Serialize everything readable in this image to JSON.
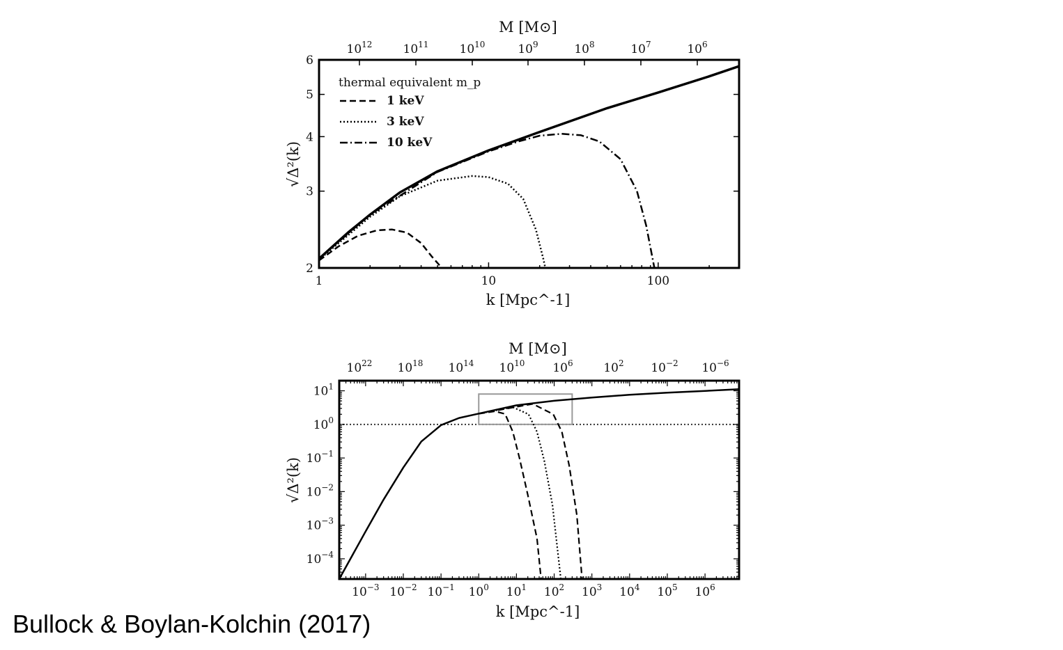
{
  "caption": "Bullock & Boylan-Kolchin (2017)",
  "chart_data": [
    {
      "type": "line",
      "panel": "top",
      "xscale": "log",
      "yscale": "log",
      "xlim": [
        1,
        300
      ],
      "ylim": [
        2,
        6
      ],
      "xlabel": "k [Mpc^-1]",
      "ylabel": "√Δ²(k)",
      "top_axis_label": "M [M⊙]",
      "x_ticks": [
        "1",
        "10",
        "100"
      ],
      "y_ticks": [
        "2",
        "3",
        "4",
        "5",
        "6"
      ],
      "top_ticks": [
        {
          "base": "10",
          "exp": "12"
        },
        {
          "base": "10",
          "exp": "11"
        },
        {
          "base": "10",
          "exp": "10"
        },
        {
          "base": "10",
          "exp": "9"
        },
        {
          "base": "10",
          "exp": "8"
        },
        {
          "base": "10",
          "exp": "7"
        },
        {
          "base": "10",
          "exp": "6"
        }
      ],
      "legend": {
        "title": "thermal equivalent m_p",
        "placement": "top-left",
        "entries": [
          "1 keV",
          "3 keV",
          "10 keV"
        ]
      },
      "series": [
        {
          "style": "solid",
          "points": [
            [
              1,
              2.1
            ],
            [
              1.5,
              2.42
            ],
            [
              2,
              2.65
            ],
            [
              3,
              2.98
            ],
            [
              5,
              3.33
            ],
            [
              10,
              3.72
            ],
            [
              20,
              4.1
            ],
            [
              50,
              4.65
            ],
            [
              100,
              5.05
            ],
            [
              200,
              5.5
            ],
            [
              300,
              5.8
            ]
          ]
        },
        {
          "name": "1 keV",
          "style": "dashed",
          "points": [
            [
              1,
              2.08
            ],
            [
              1.3,
              2.24
            ],
            [
              1.7,
              2.37
            ],
            [
              2.2,
              2.44
            ],
            [
              2.7,
              2.45
            ],
            [
              3.3,
              2.41
            ],
            [
              4.0,
              2.28
            ],
            [
              4.6,
              2.13
            ],
            [
              5.3,
              2.0
            ]
          ]
        },
        {
          "name": "3 keV",
          "style": "dotted",
          "points": [
            [
              1,
              2.09
            ],
            [
              2,
              2.62
            ],
            [
              3,
              2.92
            ],
            [
              5,
              3.17
            ],
            [
              8,
              3.25
            ],
            [
              10,
              3.23
            ],
            [
              13,
              3.12
            ],
            [
              16,
              2.88
            ],
            [
              19,
              2.45
            ],
            [
              21,
              2.1
            ],
            [
              21.6,
              2.0
            ]
          ]
        },
        {
          "name": "10 keV",
          "style": "dashdot",
          "points": [
            [
              1,
              2.1
            ],
            [
              2,
              2.65
            ],
            [
              5,
              3.32
            ],
            [
              10,
              3.7
            ],
            [
              15,
              3.9
            ],
            [
              20,
              4.02
            ],
            [
              27,
              4.06
            ],
            [
              35,
              4.03
            ],
            [
              45,
              3.9
            ],
            [
              60,
              3.55
            ],
            [
              75,
              3.0
            ],
            [
              85,
              2.5
            ],
            [
              95,
              2.0
            ]
          ]
        }
      ]
    },
    {
      "type": "line",
      "panel": "bottom",
      "xscale": "log",
      "yscale": "log",
      "xlim": [
        0.0002,
        8000000
      ],
      "ylim": [
        2.5e-05,
        20
      ],
      "xlabel": "k [Mpc^-1]",
      "ylabel": "√Δ²(k)",
      "top_axis_label": "M [M⊙]",
      "x_ticks": [
        {
          "base": "10",
          "exp": "−3"
        },
        {
          "base": "10",
          "exp": "−2"
        },
        {
          "base": "10",
          "exp": "−1"
        },
        {
          "base": "10",
          "exp": "0"
        },
        {
          "base": "10",
          "exp": "1"
        },
        {
          "base": "10",
          "exp": "2"
        },
        {
          "base": "10",
          "exp": "3"
        },
        {
          "base": "10",
          "exp": "4"
        },
        {
          "base": "10",
          "exp": "5"
        },
        {
          "base": "10",
          "exp": "6"
        }
      ],
      "y_ticks": [
        {
          "base": "10",
          "exp": "1"
        },
        {
          "base": "10",
          "exp": "0"
        },
        {
          "base": "10",
          "exp": "−1"
        },
        {
          "base": "10",
          "exp": "−2"
        },
        {
          "base": "10",
          "exp": "−3"
        },
        {
          "base": "10",
          "exp": "−4"
        }
      ],
      "top_ticks": [
        {
          "base": "10",
          "exp": "22"
        },
        {
          "base": "10",
          "exp": "18"
        },
        {
          "base": "10",
          "exp": "14"
        },
        {
          "base": "10",
          "exp": "10"
        },
        {
          "base": "10",
          "exp": "6"
        },
        {
          "base": "10",
          "exp": "2"
        },
        {
          "base": "10",
          "exp": "−2"
        },
        {
          "base": "10",
          "exp": "−6"
        }
      ],
      "reference_line": {
        "y": 1,
        "style": "dotted"
      },
      "inset_box": {
        "xlim": [
          1,
          300
        ],
        "ylim": [
          1,
          8
        ]
      },
      "series": [
        {
          "style": "solid",
          "points": [
            [
              0.0002,
              2.5e-05
            ],
            [
              0.001,
              0.00065
            ],
            [
              0.003,
              0.0058
            ],
            [
              0.01,
              0.052
            ],
            [
              0.03,
              0.31
            ],
            [
              0.1,
              0.95
            ],
            [
              0.3,
              1.55
            ],
            [
              1,
              2.1
            ],
            [
              10,
              3.7
            ],
            [
              100,
              5.05
            ],
            [
              1000,
              6.3
            ],
            [
              10000,
              7.6
            ],
            [
              100000,
              8.8
            ],
            [
              1000000,
              9.9
            ],
            [
              8000000,
              11.2
            ]
          ]
        },
        {
          "name": "1 keV",
          "style": "dashed",
          "points": [
            [
              1,
              2.08
            ],
            [
              2.7,
              2.45
            ],
            [
              5,
              2.05
            ],
            [
              8,
              0.6
            ],
            [
              12,
              0.1
            ],
            [
              20,
              0.008
            ],
            [
              35,
              0.0004
            ],
            [
              45,
              2.5e-05
            ]
          ]
        },
        {
          "name": "3 keV",
          "style": "dotted",
          "points": [
            [
              1,
              2.09
            ],
            [
              8,
              3.25
            ],
            [
              21,
              2.0
            ],
            [
              35,
              0.6
            ],
            [
              55,
              0.08
            ],
            [
              90,
              0.004
            ],
            [
              150,
              2.5e-05
            ]
          ]
        },
        {
          "name": "10 keV",
          "style": "dashed",
          "points": [
            [
              1,
              2.1
            ],
            [
              27,
              4.06
            ],
            [
              95,
              2.0
            ],
            [
              160,
              0.6
            ],
            [
              250,
              0.06
            ],
            [
              400,
              0.002
            ],
            [
              550,
              2.5e-05
            ]
          ]
        }
      ]
    }
  ]
}
